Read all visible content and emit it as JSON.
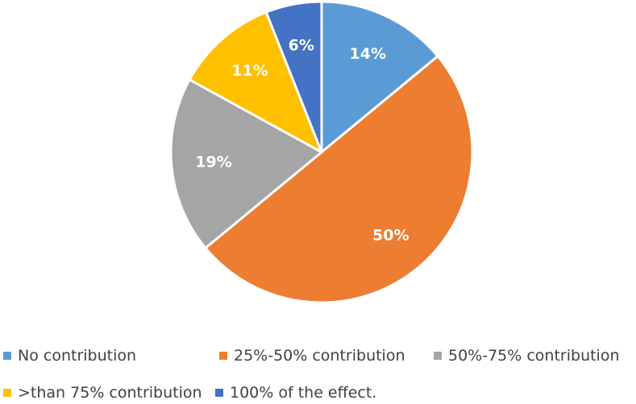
{
  "chart_data": {
    "type": "pie",
    "title": "",
    "slices": [
      {
        "label": "No contribution",
        "value": 14,
        "display": "14%",
        "color": "#5B9BD5"
      },
      {
        "label": "25%-50% contribution",
        "value": 50,
        "display": "50%",
        "color": "#ED7D31"
      },
      {
        "label": "50%-75% contribution",
        "value": 19,
        "display": "19%",
        "color": "#A5A5A5"
      },
      {
        "label": ">than 75% contribution",
        "value": 11,
        "display": "11%",
        "color": "#FFC000"
      },
      {
        "label": "100% of the effect.",
        "value": 6,
        "display": "6%",
        "color": "#4472C4"
      }
    ],
    "start_angle_deg": 0,
    "direction": "clockwise",
    "legend_position": "bottom",
    "legend_text_color": "#404040",
    "slice_border_color": "#FFFFFF"
  }
}
